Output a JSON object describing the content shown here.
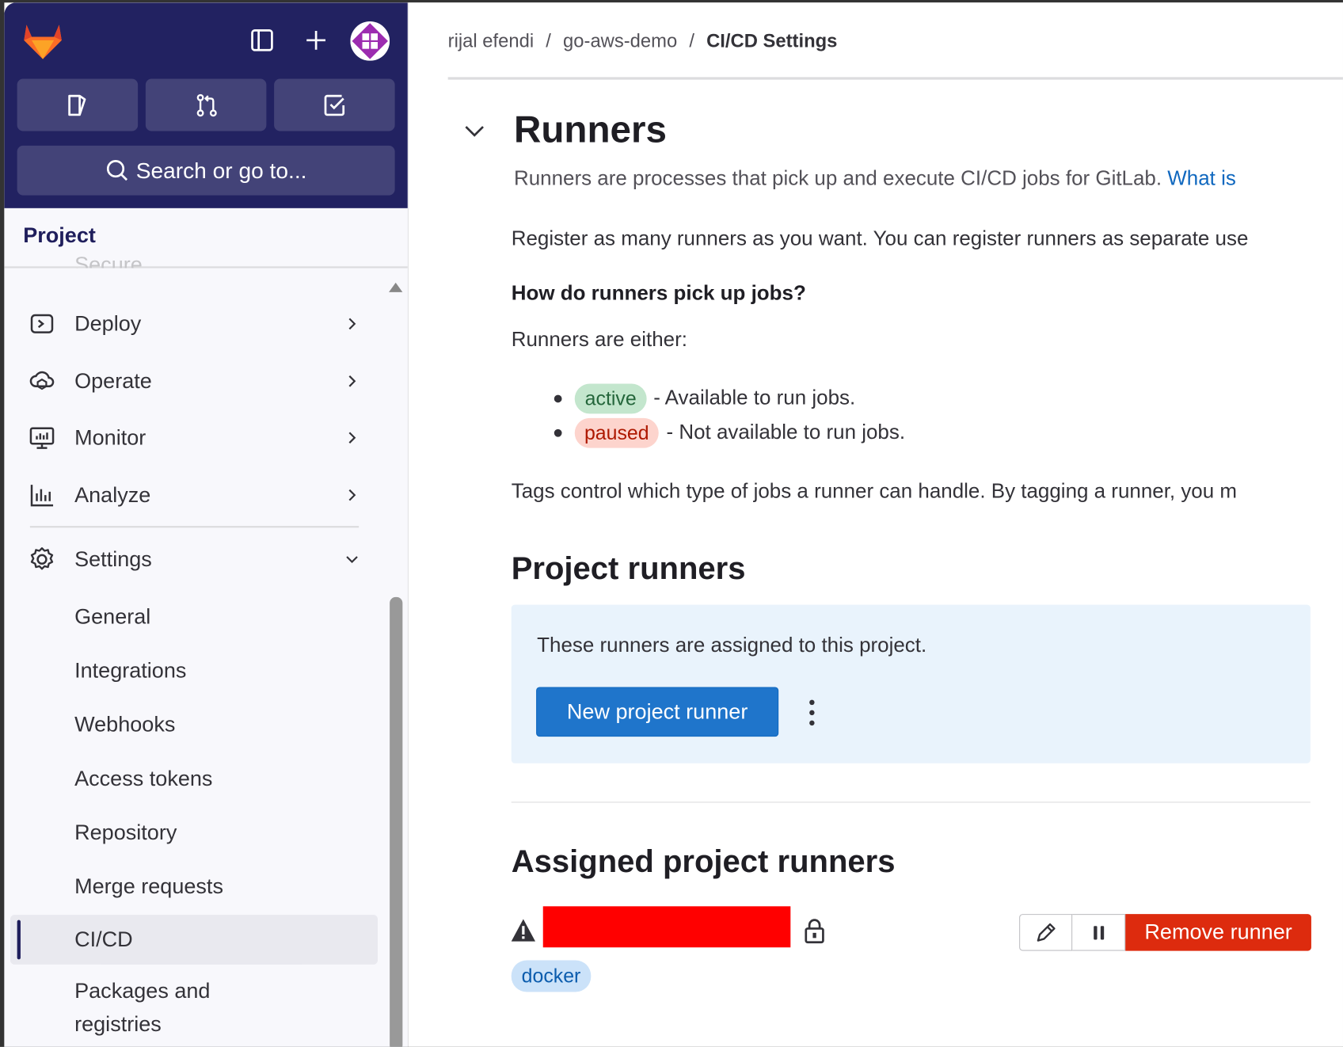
{
  "sidebar": {
    "header_icons": [
      "gitlab-logo",
      "sidebar-toggle-icon",
      "plus-icon",
      "avatar"
    ],
    "quick_buttons": [
      "issues-icon",
      "merge-request-icon",
      "todo-icon"
    ],
    "search_placeholder": "Search or go to...",
    "context_title": "Project",
    "faded_item": "Secure",
    "items": [
      {
        "label": "Deploy",
        "icon": "deploy-icon"
      },
      {
        "label": "Operate",
        "icon": "operate-icon"
      },
      {
        "label": "Monitor",
        "icon": "monitor-icon"
      },
      {
        "label": "Analyze",
        "icon": "analyze-icon"
      },
      {
        "label": "Settings",
        "icon": "settings-icon",
        "expanded": true
      }
    ],
    "settings_sub": [
      "General",
      "Integrations",
      "Webhooks",
      "Access tokens",
      "Repository",
      "Merge requests",
      "CI/CD",
      "Packages and",
      "registries"
    ],
    "active_item": "CI/CD"
  },
  "breadcrumb": [
    "rijal efendi",
    "go-aws-demo",
    "CI/CD Settings"
  ],
  "runners": {
    "title": "Runners",
    "description": "Runners are processes that pick up and execute CI/CD jobs for GitLab.",
    "description_link": "What is",
    "register_text": "Register as many runners as you want. You can register runners as separate use",
    "how_heading": "How do runners pick up jobs?",
    "either": "Runners are either:",
    "states": [
      {
        "badge": "active",
        "text": "- Available to run jobs."
      },
      {
        "badge": "paused",
        "text": "- Not available to run jobs."
      }
    ],
    "tags_text": "Tags control which type of jobs a runner can handle. By tagging a runner, you m"
  },
  "project_runners": {
    "title": "Project runners",
    "info": "These runners are assigned to this project.",
    "new_button": "New project runner"
  },
  "assigned": {
    "title": "Assigned project runners",
    "remove_button": "Remove runner",
    "tag": "docker"
  },
  "colors": {
    "nav_bg": "#222261",
    "primary": "#1f75cb",
    "danger": "#dd2b0e",
    "link": "#1068bf"
  }
}
